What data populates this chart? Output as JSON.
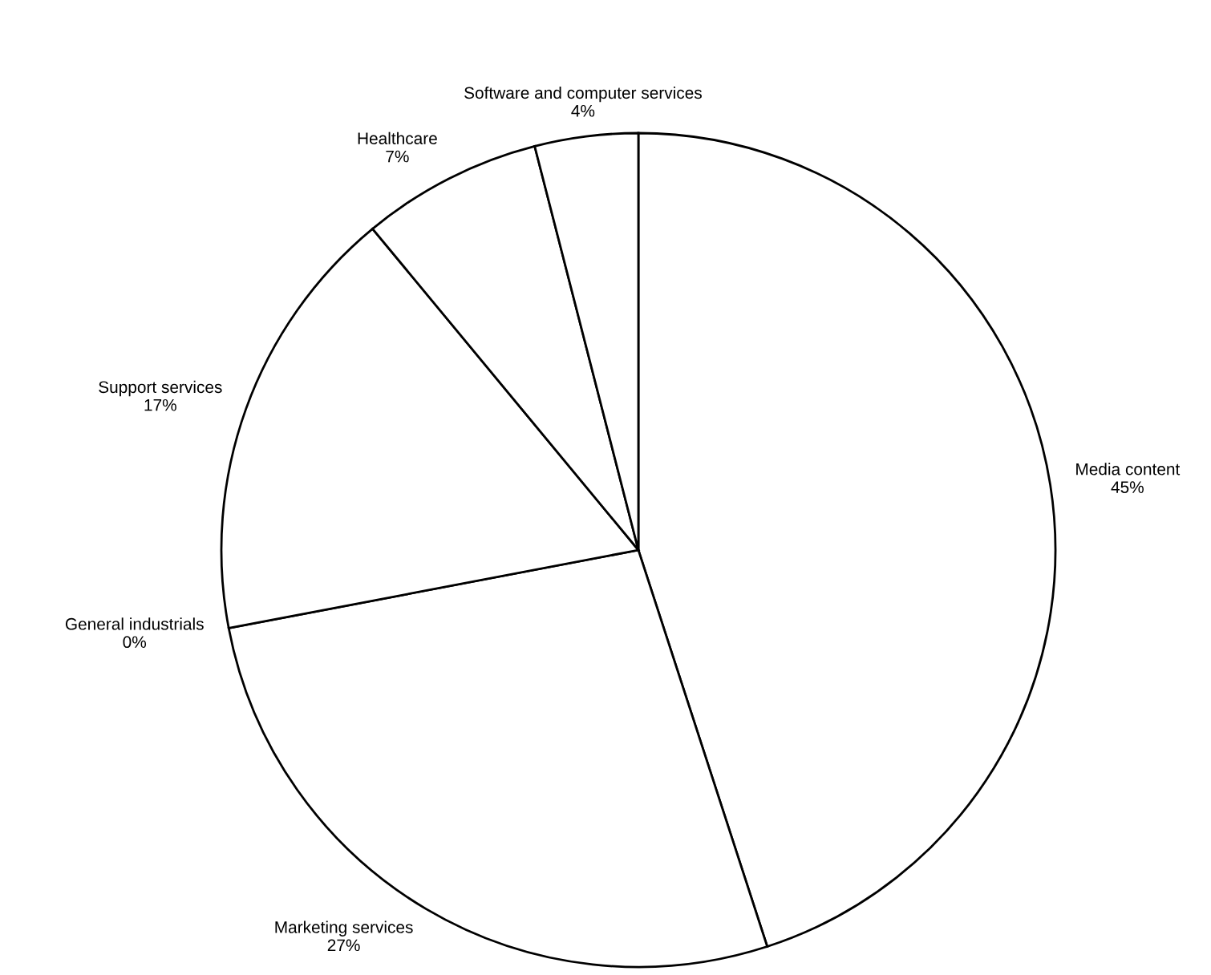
{
  "chart_data": {
    "type": "pie",
    "categories": [
      "Media content",
      "Marketing services",
      "General industrials",
      "Support services",
      "Healthcare",
      "Software and computer services"
    ],
    "values": [
      45,
      27,
      0,
      17,
      7,
      4
    ],
    "value_labels": [
      "45%",
      "27%",
      "0%",
      "17%",
      "7%",
      "4%"
    ],
    "colors": [
      "#ffffff",
      "#ffffff",
      "#ffffff",
      "#ffffff",
      "#ffffff",
      "#ffffff"
    ]
  }
}
